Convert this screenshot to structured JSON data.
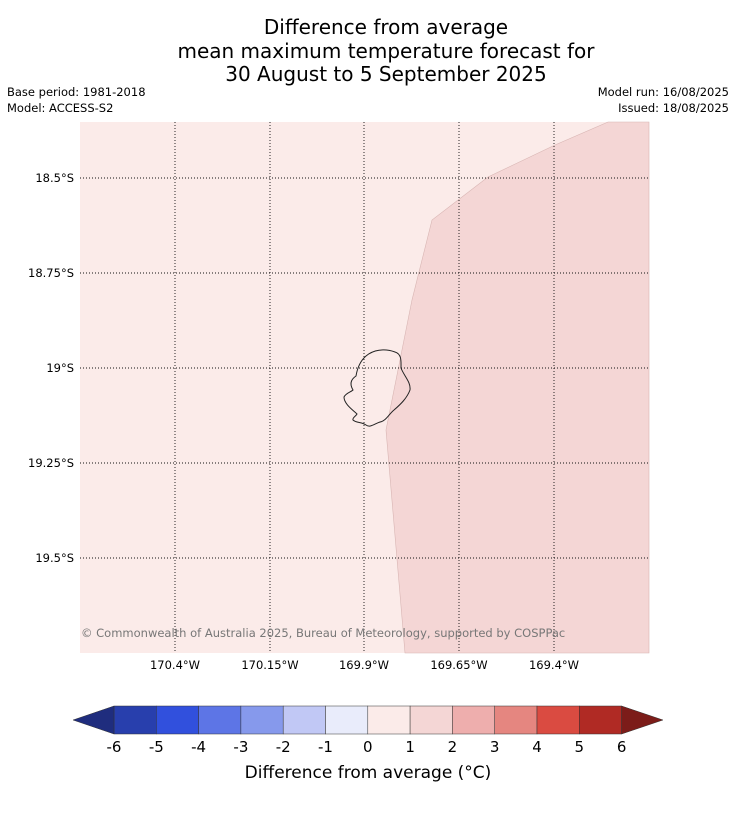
{
  "title": {
    "line1": "Difference from average",
    "line2": "mean maximum temperature forecast for",
    "line3": "30 August to 5 September 2025"
  },
  "meta": {
    "base_period": "Base period: 1981-2018",
    "model": "Model: ACCESS-S2",
    "model_run": "Model run: 16/08/2025",
    "issued": "Issued: 18/08/2025"
  },
  "map": {
    "lat_ticks": [
      "18.5°S",
      "18.75°S",
      "19°S",
      "19.25°S",
      "19.5°S"
    ],
    "lon_ticks": [
      "170.4°W",
      "170.15°W",
      "169.9°W",
      "169.65°W",
      "169.4°W"
    ],
    "copyright": "© Commonwealth of Australia 2025, Bureau of Meteorology, supported by COSPPac",
    "region_colors": {
      "band_0_1": "#fbebe9",
      "band_1_2": "#f4d6d5"
    }
  },
  "colorbar": {
    "label": "Difference from average (°C)",
    "ticks": [
      "-6",
      "-5",
      "-4",
      "-3",
      "-2",
      "-1",
      "0",
      "1",
      "2",
      "3",
      "4",
      "5",
      "6"
    ],
    "colors": [
      "#283fad",
      "#3150dd",
      "#5d75e6",
      "#8699ec",
      "#c1c8f5",
      "#e9ecfb",
      "#fbebe9",
      "#f4d6d5",
      "#eeaead",
      "#e58680",
      "#da4b41",
      "#b02a24"
    ],
    "under_color": "#1f2d7e",
    "over_color": "#7c1c19"
  }
}
